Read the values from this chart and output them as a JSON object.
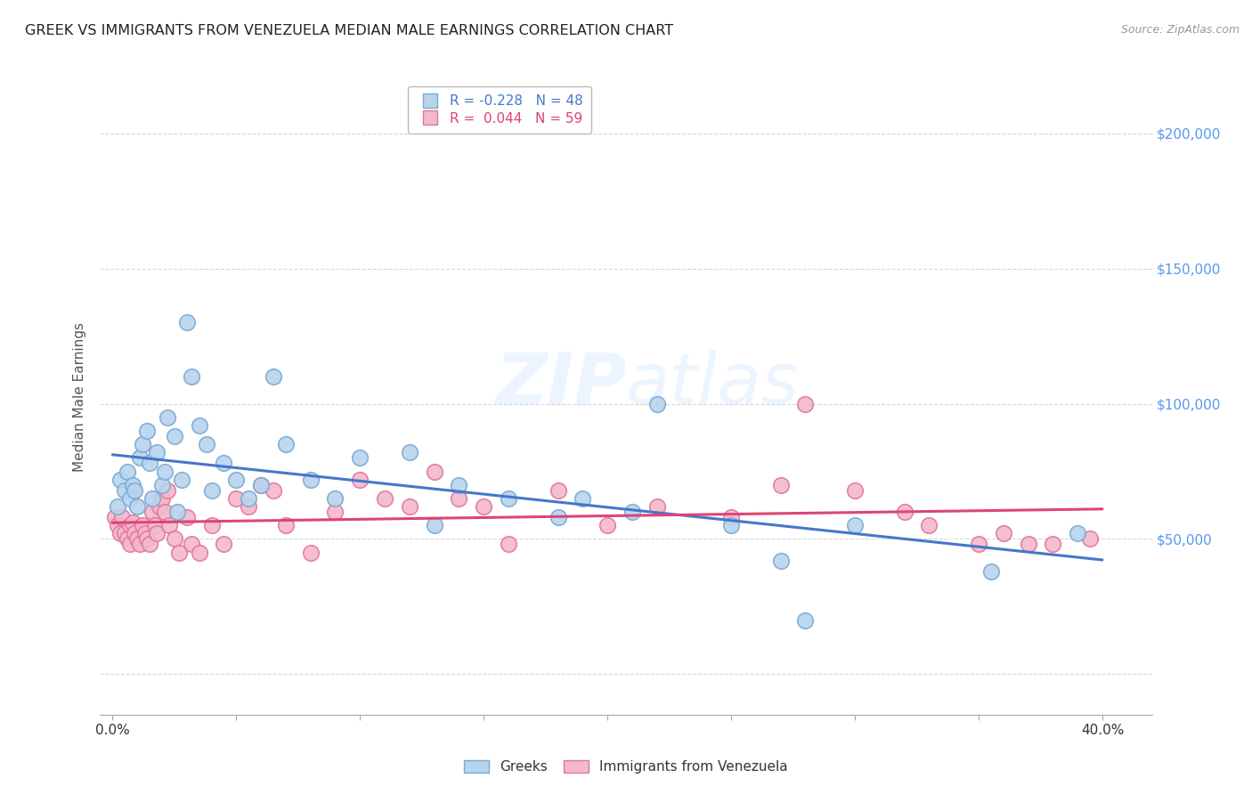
{
  "title": "GREEK VS IMMIGRANTS FROM VENEZUELA MEDIAN MALE EARNINGS CORRELATION CHART",
  "source": "Source: ZipAtlas.com",
  "ylabel": "Median Male Earnings",
  "watermark": "ZIPatlas",
  "blue_label": "Greeks",
  "pink_label": "Immigrants from Venezuela",
  "blue_R": -0.228,
  "blue_N": 48,
  "pink_R": 0.044,
  "pink_N": 59,
  "blue_color": "#b8d4ed",
  "blue_edge": "#7aaad4",
  "pink_color": "#f4b8cc",
  "pink_edge": "#e07898",
  "blue_line_color": "#4477cc",
  "pink_line_color": "#dd4477",
  "right_axis_color": "#5599ee",
  "yticks": [
    0,
    50000,
    100000,
    150000,
    200000
  ],
  "ylim": [
    -15000,
    220000
  ],
  "xlim": [
    -0.5,
    42.0
  ],
  "xticks": [
    0,
    5,
    10,
    15,
    20,
    25,
    30,
    35,
    40
  ],
  "blue_x": [
    0.2,
    0.3,
    0.5,
    0.6,
    0.7,
    0.8,
    0.9,
    1.0,
    1.1,
    1.2,
    1.4,
    1.5,
    1.6,
    1.8,
    2.0,
    2.1,
    2.2,
    2.5,
    2.6,
    2.8,
    3.0,
    3.2,
    3.5,
    3.8,
    4.0,
    4.5,
    5.0,
    5.5,
    6.0,
    6.5,
    7.0,
    8.0,
    9.0,
    10.0,
    12.0,
    13.0,
    14.0,
    16.0,
    18.0,
    19.0,
    21.0,
    22.0,
    25.0,
    27.0,
    28.0,
    30.0,
    35.5,
    39.0
  ],
  "blue_y": [
    62000,
    72000,
    68000,
    75000,
    65000,
    70000,
    68000,
    62000,
    80000,
    85000,
    90000,
    78000,
    65000,
    82000,
    70000,
    75000,
    95000,
    88000,
    60000,
    72000,
    130000,
    110000,
    92000,
    85000,
    68000,
    78000,
    72000,
    65000,
    70000,
    110000,
    85000,
    72000,
    65000,
    80000,
    82000,
    55000,
    70000,
    65000,
    58000,
    65000,
    60000,
    100000,
    55000,
    42000,
    20000,
    55000,
    38000,
    52000
  ],
  "pink_x": [
    0.1,
    0.2,
    0.3,
    0.4,
    0.5,
    0.6,
    0.7,
    0.7,
    0.8,
    0.9,
    1.0,
    1.1,
    1.2,
    1.3,
    1.4,
    1.5,
    1.6,
    1.7,
    1.8,
    1.9,
    2.0,
    2.1,
    2.2,
    2.3,
    2.5,
    2.7,
    3.0,
    3.2,
    3.5,
    4.0,
    4.5,
    5.0,
    5.5,
    6.0,
    6.5,
    7.0,
    8.0,
    9.0,
    10.0,
    11.0,
    12.0,
    13.0,
    14.0,
    15.0,
    16.0,
    18.0,
    20.0,
    22.0,
    25.0,
    27.0,
    28.0,
    30.0,
    32.0,
    33.0,
    35.0,
    36.0,
    37.0,
    38.0,
    39.5
  ],
  "pink_y": [
    58000,
    55000,
    52000,
    58000,
    52000,
    50000,
    55000,
    48000,
    56000,
    52000,
    50000,
    48000,
    55000,
    52000,
    50000,
    48000,
    60000,
    55000,
    52000,
    62000,
    65000,
    60000,
    68000,
    55000,
    50000,
    45000,
    58000,
    48000,
    45000,
    55000,
    48000,
    65000,
    62000,
    70000,
    68000,
    55000,
    45000,
    60000,
    72000,
    65000,
    62000,
    75000,
    65000,
    62000,
    48000,
    68000,
    55000,
    62000,
    58000,
    70000,
    100000,
    68000,
    60000,
    55000,
    48000,
    52000,
    48000,
    48000,
    50000
  ]
}
